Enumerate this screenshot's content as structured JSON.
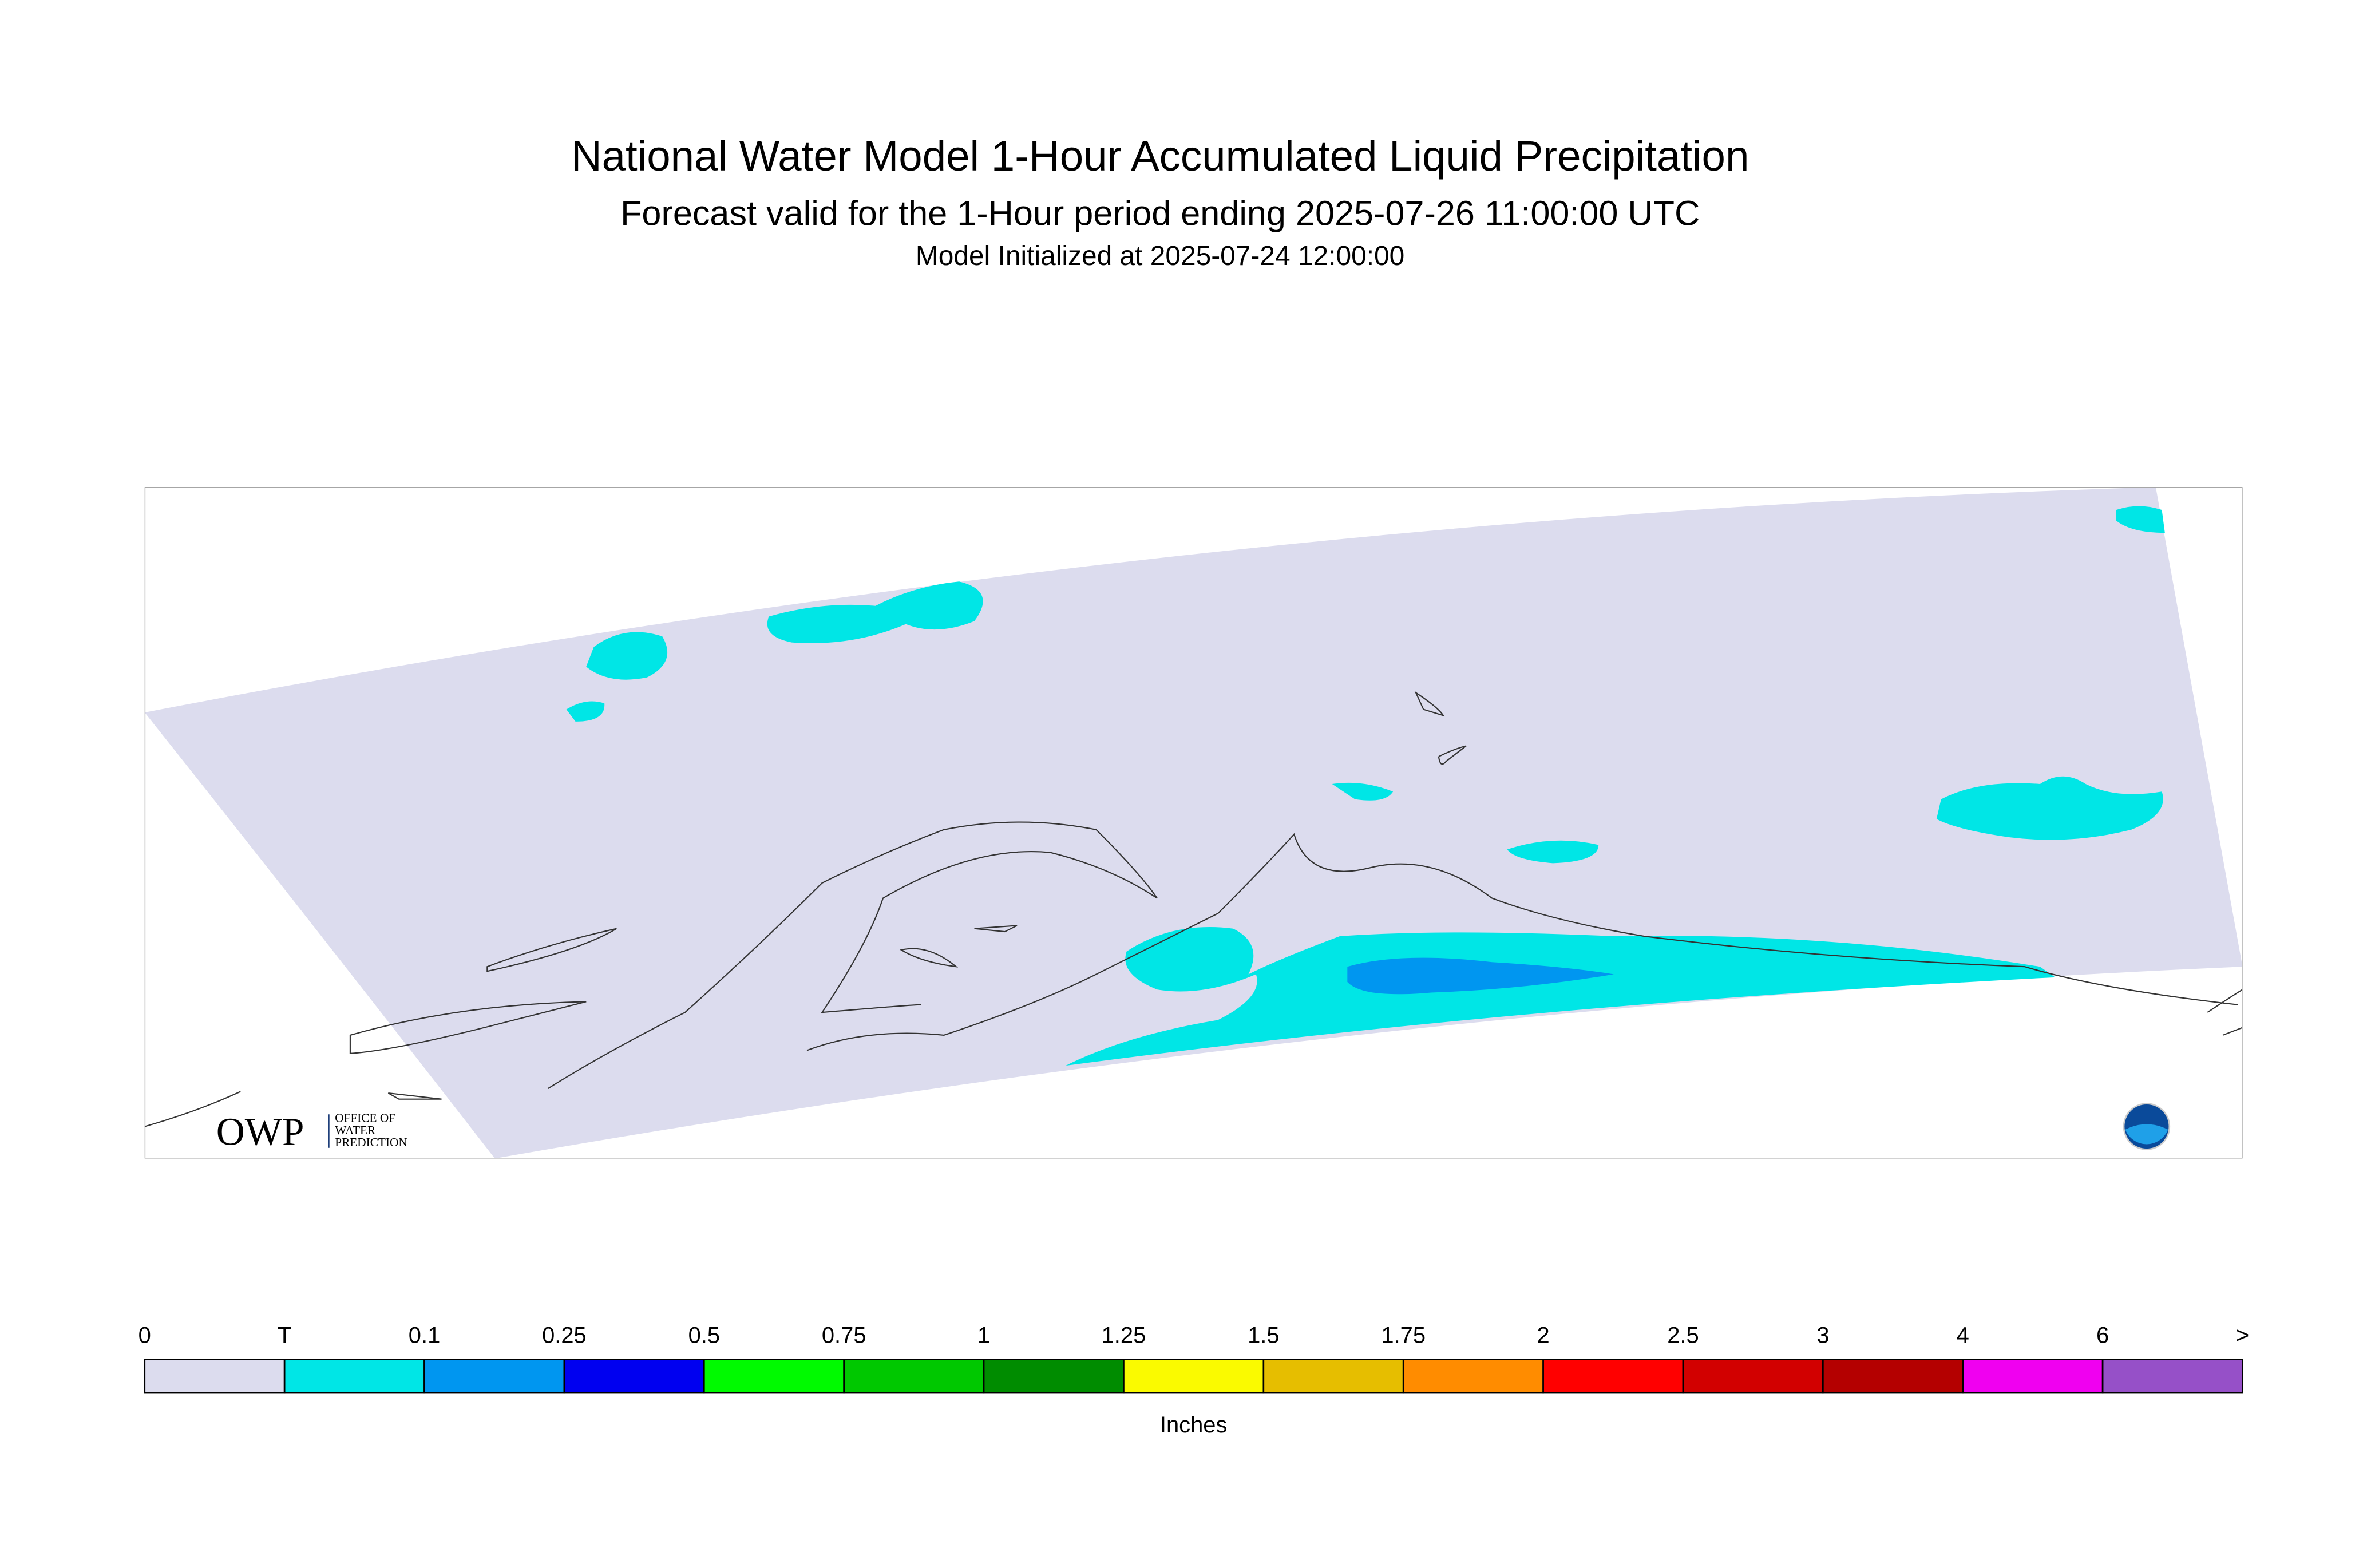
{
  "header": {
    "title": "National Water Model 1-Hour Accumulated Liquid Precipitation",
    "subtitle": "Forecast valid for the 1-Hour period ending 2025-07-26 11:00:00 UTC",
    "initialized": "Model Initialized at 2025-07-24 12:00:00"
  },
  "logo": {
    "mark": "OWP",
    "lines": [
      "OFFICE OF",
      "WATER",
      "PREDICTION"
    ]
  },
  "legend": {
    "labels": [
      "0",
      "T",
      "0.1",
      "0.25",
      "0.5",
      "0.75",
      "1",
      "1.25",
      "1.5",
      "1.75",
      "2",
      "2.5",
      "3",
      "4",
      "6",
      ">"
    ],
    "colors": [
      "#dcdcee",
      "#00e6e6",
      "#0096f0",
      "#0000f0",
      "#00fa00",
      "#00c800",
      "#008c00",
      "#fafa00",
      "#e6be00",
      "#ff8c00",
      "#ff0000",
      "#d20000",
      "#b40000",
      "#f000f0",
      "#9650c8"
    ],
    "unit": "Inches"
  }
}
